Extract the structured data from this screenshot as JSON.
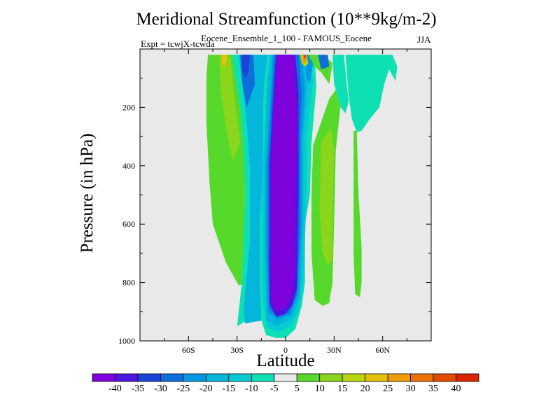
{
  "chart_data": {
    "type": "heatmap",
    "title": "Meridional Streamfunction (10**9kg/m-2)",
    "subtitle": "Eocene_Ensemble_1_100 - FAMOUS_Eocene",
    "experiment_label": "Expt = tcwjX-tcwda",
    "season": "JJA",
    "xlabel": "Latitude",
    "ylabel": "Pressure (in hPa)",
    "x_ticks": [
      "60S",
      "30S",
      "0",
      "30N",
      "60N"
    ],
    "x_tick_values": [
      -60,
      -30,
      0,
      30,
      60
    ],
    "xlim": [
      -90,
      90
    ],
    "y_ticks": [
      "200",
      "400",
      "600",
      "800",
      "1000"
    ],
    "y_tick_values": [
      200,
      400,
      600,
      800,
      1000
    ],
    "ylim": [
      0,
      1000
    ],
    "y_inverted": true,
    "colorbar": {
      "labels": [
        "-40",
        "-35",
        "-30",
        "-25",
        "-20",
        "-15",
        "-10",
        "-5",
        "5",
        "10",
        "15",
        "20",
        "25",
        "30",
        "35",
        "40"
      ],
      "colors": [
        "#7e02dc",
        "#4d16e0",
        "#1c43d7",
        "#0e6fdb",
        "#0498e4",
        "#04b6dc",
        "#06cbd4",
        "#0ee0b3",
        "#e9e9e9",
        "#57d92b",
        "#8ad61d",
        "#bbd60d",
        "#e4c10b",
        "#ee9c07",
        "#ea7206",
        "#e24c04",
        "#d82500"
      ]
    },
    "background_color": "#e9e9e9",
    "regions": [
      {
        "level_index": 9,
        "points": [
          [
            -48,
            20
          ],
          [
            -31,
            20
          ],
          [
            -25,
            200
          ],
          [
            -22,
            300
          ],
          [
            -23,
            450
          ],
          [
            -22,
            700
          ],
          [
            -24,
            800
          ],
          [
            -29,
            810
          ],
          [
            -37,
            730
          ],
          [
            -45,
            600
          ],
          [
            -47,
            460
          ],
          [
            -49,
            250
          ],
          [
            -49,
            100
          ]
        ]
      },
      {
        "level_index": 10,
        "points": [
          [
            -41,
            30
          ],
          [
            -34,
            30
          ],
          [
            -32,
            150
          ],
          [
            -28,
            320
          ],
          [
            -33,
            380
          ],
          [
            -37,
            260
          ],
          [
            -40,
            150
          ]
        ]
      },
      {
        "level_index": 12,
        "points": [
          [
            -40,
            20
          ],
          [
            -36,
            20
          ],
          [
            -37,
            60
          ],
          [
            -39,
            60
          ]
        ]
      },
      {
        "level_index": 9,
        "points": [
          [
            17,
            330
          ],
          [
            27,
            170
          ],
          [
            31,
            140
          ],
          [
            34,
            190
          ],
          [
            31,
            350
          ],
          [
            30,
            600
          ],
          [
            29,
            800
          ],
          [
            27,
            870
          ],
          [
            23,
            880
          ],
          [
            18,
            860
          ],
          [
            16,
            700
          ],
          [
            16,
            500
          ]
        ]
      },
      {
        "level_index": 10,
        "points": [
          [
            22,
            320
          ],
          [
            28,
            270
          ],
          [
            30,
            350
          ],
          [
            29,
            550
          ],
          [
            29,
            720
          ],
          [
            26,
            740
          ],
          [
            23,
            700
          ],
          [
            21,
            550
          ]
        ]
      },
      {
        "level_index": 9,
        "points": [
          [
            42,
            280
          ],
          [
            44,
            280
          ],
          [
            45,
            490
          ],
          [
            47,
            680
          ],
          [
            47,
            800
          ],
          [
            46,
            850
          ],
          [
            43,
            840
          ],
          [
            42,
            700
          ]
        ]
      },
      {
        "level_index": 7,
        "points": [
          [
            29,
            20
          ],
          [
            36,
            20
          ],
          [
            39,
            180
          ],
          [
            37,
            220
          ],
          [
            34,
            200
          ],
          [
            30,
            120
          ]
        ]
      },
      {
        "level_index": 7,
        "points": [
          [
            37,
            20
          ],
          [
            66,
            20
          ],
          [
            69,
            60
          ],
          [
            68,
            110
          ],
          [
            64,
            70
          ],
          [
            61,
            120
          ],
          [
            58,
            200
          ],
          [
            55,
            220
          ],
          [
            52,
            240
          ],
          [
            47,
            280
          ],
          [
            44,
            285
          ],
          [
            41,
            240
          ],
          [
            39,
            160
          ]
        ]
      },
      {
        "level_index": 7,
        "points": [
          [
            -33,
            20
          ],
          [
            -8,
            20
          ],
          [
            -8,
            380
          ],
          [
            -10,
            470
          ],
          [
            -12,
            750
          ],
          [
            -16,
            880
          ],
          [
            -18,
            910
          ],
          [
            -30,
            950
          ],
          [
            -27,
            800
          ],
          [
            -25,
            500
          ],
          [
            -26,
            350
          ],
          [
            -28,
            200
          ],
          [
            -31,
            100
          ]
        ]
      },
      {
        "level_index": 5,
        "points": [
          [
            -29,
            20
          ],
          [
            -8,
            20
          ],
          [
            -8,
            470
          ],
          [
            -10,
            900
          ],
          [
            -14,
            930
          ],
          [
            -25,
            940
          ],
          [
            -26,
            900
          ],
          [
            -22,
            650
          ],
          [
            -22,
            420
          ],
          [
            -24,
            250
          ],
          [
            -27,
            110
          ]
        ]
      },
      {
        "level_index": 3,
        "points": [
          [
            -28,
            20
          ],
          [
            -20,
            20
          ],
          [
            -19,
            120
          ],
          [
            -24,
            200
          ],
          [
            -27,
            110
          ]
        ]
      },
      {
        "level_index": 2,
        "points": [
          [
            -27,
            20
          ],
          [
            -22,
            20
          ],
          [
            -23,
            80
          ],
          [
            -25,
            100
          ],
          [
            -27,
            70
          ]
        ]
      },
      {
        "level_index": 7,
        "points": [
          [
            -11,
            20
          ],
          [
            18,
            20
          ],
          [
            19,
            130
          ],
          [
            16,
            320
          ],
          [
            15,
            500
          ],
          [
            12,
            600
          ],
          [
            12,
            800
          ],
          [
            10,
            880
          ],
          [
            6,
            960
          ],
          [
            0,
            990
          ],
          [
            -6,
            990
          ],
          [
            -12,
            980
          ],
          [
            -15,
            930
          ],
          [
            -16,
            800
          ],
          [
            -16,
            600
          ],
          [
            -14,
            400
          ],
          [
            -14,
            200
          ],
          [
            -13,
            100
          ]
        ]
      },
      {
        "level_index": 6,
        "points": [
          [
            -10,
            20
          ],
          [
            14,
            20
          ],
          [
            17,
            110
          ],
          [
            13,
            300
          ],
          [
            13,
            500
          ],
          [
            11,
            800
          ],
          [
            8,
            900
          ],
          [
            3,
            950
          ],
          [
            -5,
            970
          ],
          [
            -12,
            950
          ],
          [
            -14,
            850
          ],
          [
            -15,
            500
          ],
          [
            -13,
            300
          ],
          [
            -12,
            150
          ]
        ]
      },
      {
        "level_index": 5,
        "points": [
          [
            -9,
            20
          ],
          [
            12,
            20
          ],
          [
            14,
            80
          ],
          [
            11,
            300
          ],
          [
            11,
            600
          ],
          [
            9,
            850
          ],
          [
            4,
            920
          ],
          [
            -5,
            950
          ],
          [
            -12,
            930
          ],
          [
            -13,
            700
          ],
          [
            -13,
            400
          ],
          [
            -12,
            200
          ],
          [
            -11,
            100
          ]
        ]
      },
      {
        "level_index": 4,
        "points": [
          [
            -8,
            20
          ],
          [
            10,
            20
          ],
          [
            12,
            150
          ],
          [
            10,
            300
          ],
          [
            10,
            600
          ],
          [
            8,
            840
          ],
          [
            3,
            910
          ],
          [
            -5,
            930
          ],
          [
            -11,
            900
          ],
          [
            -12,
            700
          ],
          [
            -12,
            400
          ],
          [
            -10,
            200
          ]
        ]
      },
      {
        "level_index": 3,
        "points": [
          [
            -7,
            20
          ],
          [
            8,
            20
          ],
          [
            10,
            150
          ],
          [
            9,
            300
          ],
          [
            9,
            600
          ],
          [
            7,
            840
          ],
          [
            2,
            905
          ],
          [
            -5,
            920
          ],
          [
            -10,
            890
          ],
          [
            -11,
            700
          ],
          [
            -11,
            400
          ],
          [
            -9,
            200
          ]
        ]
      },
      {
        "level_index": 1,
        "points": [
          [
            -6,
            20
          ],
          [
            6,
            20
          ],
          [
            8,
            150
          ],
          [
            8,
            300
          ],
          [
            8,
            500
          ],
          [
            7,
            820
          ],
          [
            4,
            880
          ],
          [
            -1,
            910
          ],
          [
            -6,
            915
          ],
          [
            -10,
            870
          ],
          [
            -10,
            400
          ],
          [
            -8,
            200
          ]
        ]
      },
      {
        "level_index": 0,
        "points": [
          [
            -5,
            20
          ],
          [
            5,
            20
          ],
          [
            7,
            200
          ],
          [
            7,
            330
          ],
          [
            6,
            500
          ],
          [
            6,
            750
          ],
          [
            4,
            850
          ],
          [
            -1,
            890
          ],
          [
            -6,
            900
          ],
          [
            -9,
            850
          ],
          [
            -9,
            700
          ],
          [
            -9,
            370
          ],
          [
            -7,
            180
          ]
        ]
      },
      {
        "level_index": 4,
        "points": [
          [
            12,
            20
          ],
          [
            16,
            20
          ],
          [
            17,
            50
          ],
          [
            15,
            120
          ],
          [
            13,
            100
          ]
        ]
      },
      {
        "level_index": 9,
        "points": [
          [
            14,
            20
          ],
          [
            24,
            20
          ],
          [
            29,
            50
          ],
          [
            27,
            120
          ],
          [
            22,
            80
          ],
          [
            18,
            60
          ]
        ]
      },
      {
        "level_index": 3,
        "points": [
          [
            20,
            20
          ],
          [
            26,
            20
          ],
          [
            27,
            60
          ],
          [
            22,
            70
          ]
        ]
      },
      {
        "level_index": 11,
        "points": [
          [
            9,
            20
          ],
          [
            13,
            20
          ],
          [
            14,
            50
          ],
          [
            12,
            60
          ],
          [
            10,
            50
          ]
        ]
      },
      {
        "level_index": 13,
        "points": [
          [
            10,
            20
          ],
          [
            13,
            20
          ],
          [
            13,
            45
          ],
          [
            11,
            50
          ]
        ]
      },
      {
        "level_index": 15,
        "points": [
          [
            11,
            20
          ],
          [
            12.5,
            20
          ],
          [
            12.5,
            30
          ],
          [
            11.5,
            35
          ]
        ]
      }
    ]
  }
}
